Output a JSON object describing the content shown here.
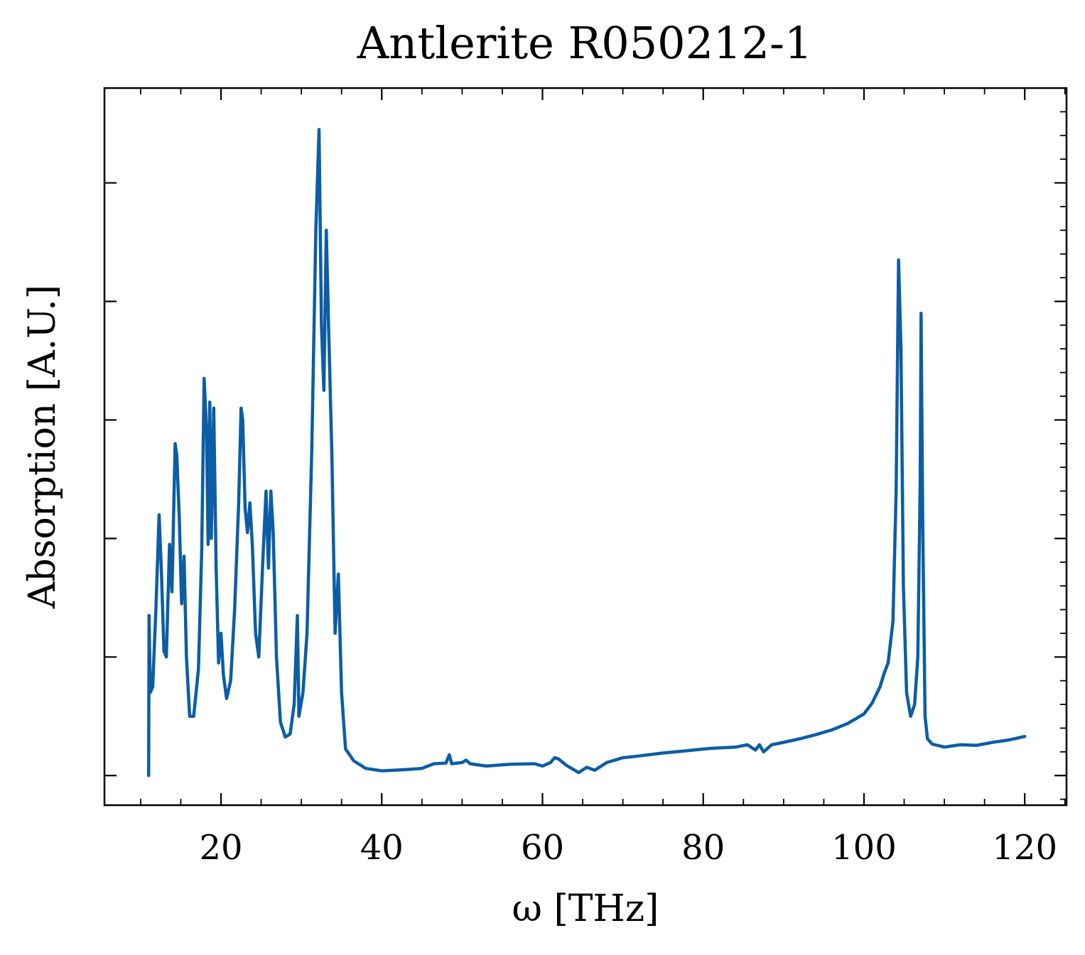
{
  "chart_data": {
    "type": "line",
    "title": "Antlerite R050212-1",
    "xlabel": "ω [THz]",
    "ylabel": "Absorption [A.U.]",
    "xlim": [
      5.5,
      125.2
    ],
    "ylim": [
      -0.05,
      1.16
    ],
    "x_ticks": [
      20,
      40,
      60,
      80,
      100,
      120
    ],
    "y_ticks_major": [
      0,
      0.2,
      0.4,
      0.6,
      0.8,
      1.0
    ],
    "y_tick_labels_shown": false,
    "grid": false,
    "legend": "none",
    "line_color": "#0C5DA5",
    "series": [
      {
        "values": [
          [
            11.0,
            0.0
          ],
          [
            11.05,
            0.27
          ],
          [
            11.2,
            0.14
          ],
          [
            11.5,
            0.15
          ],
          [
            11.9,
            0.28
          ],
          [
            12.3,
            0.44
          ],
          [
            12.6,
            0.34
          ],
          [
            12.9,
            0.21
          ],
          [
            13.2,
            0.2
          ],
          [
            13.6,
            0.39
          ],
          [
            13.9,
            0.31
          ],
          [
            14.3,
            0.56
          ],
          [
            14.5,
            0.54
          ],
          [
            14.8,
            0.44
          ],
          [
            15.1,
            0.29
          ],
          [
            15.4,
            0.37
          ],
          [
            15.7,
            0.2
          ],
          [
            16.1,
            0.1
          ],
          [
            16.6,
            0.1
          ],
          [
            17.2,
            0.18
          ],
          [
            17.6,
            0.38
          ],
          [
            17.9,
            0.67
          ],
          [
            18.2,
            0.58
          ],
          [
            18.4,
            0.39
          ],
          [
            18.6,
            0.63
          ],
          [
            18.8,
            0.4
          ],
          [
            19.1,
            0.62
          ],
          [
            19.4,
            0.35
          ],
          [
            19.7,
            0.19
          ],
          [
            20.0,
            0.24
          ],
          [
            20.3,
            0.17
          ],
          [
            20.7,
            0.13
          ],
          [
            21.2,
            0.16
          ],
          [
            21.7,
            0.28
          ],
          [
            22.2,
            0.46
          ],
          [
            22.5,
            0.62
          ],
          [
            22.7,
            0.6
          ],
          [
            23.0,
            0.45
          ],
          [
            23.3,
            0.41
          ],
          [
            23.6,
            0.46
          ],
          [
            23.9,
            0.39
          ],
          [
            24.3,
            0.24
          ],
          [
            24.7,
            0.2
          ],
          [
            25.2,
            0.36
          ],
          [
            25.6,
            0.48
          ],
          [
            25.9,
            0.35
          ],
          [
            26.2,
            0.48
          ],
          [
            26.5,
            0.41
          ],
          [
            26.9,
            0.2
          ],
          [
            27.4,
            0.09
          ],
          [
            28.0,
            0.065
          ],
          [
            28.6,
            0.07
          ],
          [
            29.1,
            0.12
          ],
          [
            29.5,
            0.27
          ],
          [
            29.7,
            0.1
          ],
          [
            30.2,
            0.14
          ],
          [
            30.7,
            0.24
          ],
          [
            31.3,
            0.55
          ],
          [
            31.8,
            0.92
          ],
          [
            32.2,
            1.09
          ],
          [
            32.5,
            0.76
          ],
          [
            32.8,
            0.65
          ],
          [
            33.1,
            0.92
          ],
          [
            33.4,
            0.75
          ],
          [
            33.8,
            0.54
          ],
          [
            34.2,
            0.24
          ],
          [
            34.6,
            0.34
          ],
          [
            35.0,
            0.14
          ],
          [
            35.5,
            0.045
          ],
          [
            36.5,
            0.025
          ],
          [
            38.0,
            0.012
          ],
          [
            40.0,
            0.008
          ],
          [
            43.0,
            0.01
          ],
          [
            45.0,
            0.012
          ],
          [
            46.5,
            0.02
          ],
          [
            48.0,
            0.021
          ],
          [
            48.4,
            0.035
          ],
          [
            48.7,
            0.02
          ],
          [
            50.0,
            0.022
          ],
          [
            50.5,
            0.026
          ],
          [
            51.0,
            0.02
          ],
          [
            53.0,
            0.016
          ],
          [
            56.0,
            0.019
          ],
          [
            59.0,
            0.02
          ],
          [
            60.0,
            0.016
          ],
          [
            61.0,
            0.022
          ],
          [
            61.5,
            0.03
          ],
          [
            62.0,
            0.028
          ],
          [
            63.0,
            0.017
          ],
          [
            64.5,
            0.005
          ],
          [
            65.5,
            0.014
          ],
          [
            66.5,
            0.009
          ],
          [
            68.0,
            0.022
          ],
          [
            70.0,
            0.03
          ],
          [
            72.0,
            0.033
          ],
          [
            75.0,
            0.038
          ],
          [
            78.0,
            0.042
          ],
          [
            81.0,
            0.046
          ],
          [
            84.0,
            0.048
          ],
          [
            85.5,
            0.052
          ],
          [
            86.5,
            0.043
          ],
          [
            87.0,
            0.052
          ],
          [
            87.5,
            0.04
          ],
          [
            88.5,
            0.052
          ],
          [
            90.0,
            0.056
          ],
          [
            92.0,
            0.062
          ],
          [
            94.0,
            0.069
          ],
          [
            96.0,
            0.077
          ],
          [
            98.0,
            0.088
          ],
          [
            100.0,
            0.104
          ],
          [
            101.0,
            0.122
          ],
          [
            102.0,
            0.15
          ],
          [
            102.5,
            0.172
          ],
          [
            103.0,
            0.19
          ],
          [
            103.6,
            0.26
          ],
          [
            104.0,
            0.48
          ],
          [
            104.3,
            0.87
          ],
          [
            104.6,
            0.72
          ],
          [
            104.9,
            0.32
          ],
          [
            105.3,
            0.14
          ],
          [
            105.8,
            0.1
          ],
          [
            106.3,
            0.12
          ],
          [
            106.7,
            0.2
          ],
          [
            107.0,
            0.5
          ],
          [
            107.1,
            0.78
          ],
          [
            107.3,
            0.44
          ],
          [
            107.6,
            0.1
          ],
          [
            107.9,
            0.062
          ],
          [
            108.5,
            0.053
          ],
          [
            110.0,
            0.048
          ],
          [
            112.0,
            0.052
          ],
          [
            114.0,
            0.051
          ],
          [
            116.0,
            0.056
          ],
          [
            118.0,
            0.06
          ],
          [
            120.0,
            0.066
          ]
        ]
      }
    ]
  }
}
